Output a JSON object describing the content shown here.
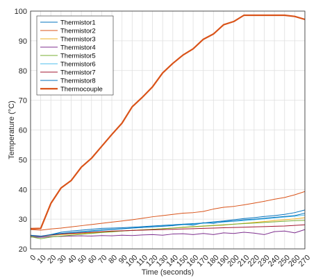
{
  "chart_data": {
    "type": "line",
    "title": "",
    "xlabel": "Time (seconds)",
    "ylabel": "Temperature (°C)",
    "xlim": [
      0,
      270
    ],
    "ylim": [
      20,
      100
    ],
    "grid": true,
    "legend_position": "top-left",
    "x": [
      0,
      10,
      20,
      30,
      40,
      50,
      60,
      70,
      80,
      90,
      100,
      110,
      120,
      130,
      140,
      150,
      160,
      170,
      180,
      190,
      200,
      210,
      220,
      230,
      240,
      250,
      260,
      270
    ],
    "xticks": [
      "0",
      "10",
      "20",
      "30",
      "40",
      "50",
      "60",
      "70",
      "80",
      "90",
      "100",
      "110",
      "120",
      "130",
      "140",
      "150",
      "160",
      "170",
      "180",
      "190",
      "200",
      "210",
      "220",
      "230",
      "240",
      "250",
      "260",
      "270"
    ],
    "yticks": [
      "20",
      "30",
      "40",
      "50",
      "60",
      "70",
      "80",
      "90",
      "100"
    ],
    "series": [
      {
        "name": "Thermistor1",
        "color": "#0072bd",
        "width": 1,
        "values": [
          24.2,
          24.0,
          24.8,
          25.6,
          26.0,
          26.3,
          26.6,
          26.9,
          27.0,
          27.1,
          27.3,
          27.5,
          27.7,
          27.9,
          28.1,
          28.3,
          28.5,
          28.7,
          29.1,
          29.4,
          29.8,
          30.2,
          30.5,
          30.9,
          31.2,
          31.6,
          32.2,
          33.1
        ]
      },
      {
        "name": "Thermistor2",
        "color": "#d95319",
        "width": 1,
        "values": [
          26.5,
          26.3,
          26.7,
          27.0,
          27.4,
          27.8,
          28.2,
          28.6,
          29.0,
          29.4,
          29.8,
          30.3,
          30.8,
          31.2,
          31.6,
          32.0,
          32.2,
          32.6,
          33.4,
          34.0,
          34.3,
          34.8,
          35.4,
          36.0,
          36.7,
          37.3,
          38.2,
          39.3
        ]
      },
      {
        "name": "Thermistor3",
        "color": "#edb120",
        "width": 1,
        "values": [
          24.3,
          24.1,
          24.5,
          24.8,
          25.0,
          25.2,
          25.4,
          25.6,
          25.8,
          26.0,
          26.2,
          26.4,
          26.6,
          26.8,
          27.0,
          27.2,
          27.4,
          27.6,
          27.8,
          28.0,
          28.3,
          28.6,
          28.9,
          29.2,
          29.5,
          29.8,
          30.1,
          30.5
        ]
      },
      {
        "name": "Thermistor4",
        "color": "#7e2f8e",
        "width": 1,
        "values": [
          24.0,
          23.9,
          24.1,
          24.2,
          24.3,
          24.4,
          24.3,
          24.5,
          24.4,
          24.6,
          24.5,
          24.7,
          24.8,
          24.6,
          25.0,
          25.1,
          24.8,
          25.2,
          24.8,
          25.4,
          25.2,
          25.6,
          25.3,
          24.8,
          25.8,
          26.0,
          25.4,
          26.5
        ]
      },
      {
        "name": "Thermistor5",
        "color": "#77ac30",
        "width": 1,
        "values": [
          24.1,
          23.4,
          24.0,
          24.3,
          24.6,
          24.9,
          25.2,
          25.5,
          25.7,
          26.0,
          26.2,
          26.4,
          26.6,
          26.8,
          27.0,
          27.3,
          27.5,
          27.7,
          27.9,
          28.1,
          28.3,
          28.5,
          28.7,
          28.9,
          29.1,
          29.3,
          29.5,
          29.6
        ]
      },
      {
        "name": "Thermistor6",
        "color": "#4dbeee",
        "width": 1,
        "values": [
          24.4,
          24.1,
          24.6,
          25.0,
          25.3,
          25.6,
          25.9,
          26.2,
          26.5,
          26.7,
          27.0,
          27.2,
          27.5,
          27.7,
          27.9,
          28.1,
          28.3,
          28.6,
          28.8,
          29.0,
          29.3,
          29.5,
          29.8,
          30.1,
          30.4,
          30.7,
          31.0,
          31.4
        ]
      },
      {
        "name": "Thermistor7",
        "color": "#a2142f",
        "width": 1,
        "values": [
          24.5,
          24.2,
          24.7,
          25.0,
          25.2,
          25.4,
          25.6,
          25.8,
          26.0,
          26.1,
          26.2,
          26.3,
          26.4,
          26.5,
          26.6,
          26.7,
          26.8,
          26.9,
          27.0,
          27.1,
          27.2,
          27.3,
          27.4,
          27.5,
          27.6,
          27.7,
          27.9,
          28.1
        ]
      },
      {
        "name": "Thermistor8",
        "color": "#0072bd",
        "width": 1,
        "values": [
          24.6,
          24.3,
          24.8,
          25.2,
          25.5,
          25.8,
          26.1,
          26.4,
          26.6,
          26.8,
          27.0,
          27.2,
          27.4,
          27.6,
          27.8,
          28.3,
          28.0,
          28.8,
          28.6,
          29.2,
          29.4,
          29.8,
          30.0,
          30.3,
          30.6,
          30.9,
          31.2,
          32.0
        ]
      },
      {
        "name": "Thermocouple",
        "color": "#d95319",
        "width": 2.2,
        "values": [
          26.8,
          26.9,
          35.3,
          40.5,
          43.0,
          47.5,
          50.5,
          54.5,
          58.5,
          62.3,
          67.8,
          71.0,
          74.5,
          79.2,
          82.4,
          85.2,
          87.3,
          90.5,
          92.3,
          95.4,
          96.5,
          98.6,
          98.6,
          98.6,
          98.6,
          98.6,
          98.2,
          97.2
        ]
      }
    ]
  }
}
